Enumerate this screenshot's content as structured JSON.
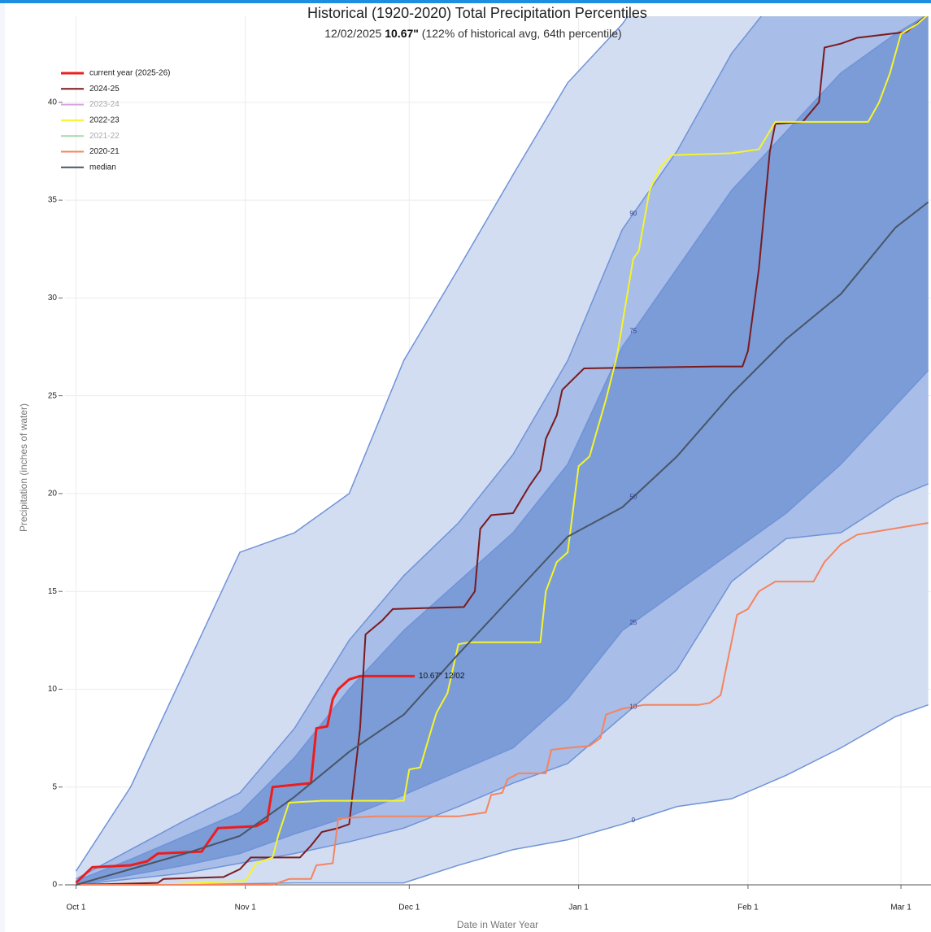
{
  "chart_data": {
    "type": "percentile-band-line",
    "title": "Historical (1920-2020) Total Precipitation Percentiles",
    "subtitle_date": "12/02/2025",
    "subtitle_value": "10.67\"",
    "subtitle_rest": "(122% of historical avg, 64th percentile)",
    "xlabel": "Date in Water Year",
    "ylabel": "Precipitation (inches of water)",
    "xlim": [
      -2,
      156.5
    ],
    "xticks": [
      {
        "value": 0,
        "label": "Oct 1"
      },
      {
        "value": 31,
        "label": "Nov 1"
      },
      {
        "value": 61,
        "label": "Dec 1"
      },
      {
        "value": 92,
        "label": "Jan 1"
      },
      {
        "value": 123,
        "label": "Feb 1"
      },
      {
        "value": 151,
        "label": "Mar 1"
      }
    ],
    "ylim": [
      0,
      44.4
    ],
    "yticks": [
      0,
      5,
      10,
      15,
      20,
      25,
      30,
      35,
      40
    ],
    "grid": true,
    "percentile_label_x": 102,
    "percentiles": {
      "x": [
        0,
        10,
        20,
        30,
        40,
        50,
        60,
        70,
        80,
        90,
        100,
        110,
        120,
        130,
        140,
        150,
        156
      ],
      "edge_color": "#6f93d8",
      "levels": [
        {
          "percentile": 0,
          "values": [
            0,
            0,
            0,
            0.05,
            0.1,
            0.1,
            0.1,
            1.0,
            1.8,
            2.3,
            3.1,
            4.0,
            4.4,
            5.6,
            7.0,
            8.6,
            9.2
          ]
        },
        {
          "percentile": 10,
          "values": [
            0,
            0.3,
            0.6,
            1.1,
            1.6,
            2.2,
            2.9,
            4.0,
            5.2,
            6.2,
            8.6,
            11.0,
            15.5,
            17.7,
            18.0,
            19.8,
            20.5
          ]
        },
        {
          "percentile": 25,
          "values": [
            0,
            0.5,
            1.0,
            1.6,
            2.6,
            3.5,
            4.6,
            5.8,
            7.0,
            9.5,
            13.0,
            15.0,
            17.0,
            19.0,
            21.5,
            24.5,
            26.3
          ]
        },
        {
          "percentile": 50,
          "values": [
            0,
            0.8,
            1.6,
            2.5,
            4.5,
            6.8,
            8.7,
            11.8,
            14.8,
            17.8,
            19.3,
            21.9,
            25.1,
            27.9,
            30.2,
            33.6,
            34.9
          ]
        },
        {
          "percentile": 75,
          "values": [
            0.2,
            1.3,
            2.5,
            3.7,
            6.5,
            10.0,
            13.0,
            15.5,
            18.0,
            21.5,
            27.5,
            31.5,
            35.5,
            38.5,
            41.5,
            43.5,
            44.5
          ]
        },
        {
          "percentile": 90,
          "values": [
            0.3,
            1.8,
            3.3,
            4.7,
            8.0,
            12.5,
            15.8,
            18.5,
            22.0,
            26.8,
            33.5,
            37.5,
            42.5,
            46,
            48,
            50,
            51
          ]
        },
        {
          "values": [
            0.7,
            5.0,
            11.0,
            17.0,
            18.0,
            20.0,
            26.8,
            31.5,
            36.3,
            41.0,
            44.0,
            48,
            52,
            55,
            58,
            61,
            63
          ]
        }
      ],
      "bands": [
        {
          "low": 0,
          "high": 6,
          "color": "#d3ddf1"
        },
        {
          "low": 1,
          "high": 5,
          "color": "#a8bde7"
        },
        {
          "low": 2,
          "high": 4,
          "color": "#7b9cd7"
        }
      ]
    },
    "series": [
      {
        "name": "current year (2025-26)",
        "color": "#ee1c1c",
        "width": 3,
        "x": [
          0,
          3,
          10,
          13,
          15,
          23,
          24,
          26,
          33,
          35,
          36,
          43,
          44,
          46,
          47,
          48,
          50,
          52,
          62
        ],
        "values": [
          0.1,
          0.9,
          1.0,
          1.2,
          1.6,
          1.7,
          2.1,
          2.9,
          3.0,
          3.3,
          5.0,
          5.2,
          8.0,
          8.1,
          9.5,
          10.0,
          10.5,
          10.67,
          10.67
        ]
      },
      {
        "name": "2024-25",
        "color": "#7a1a1e",
        "width": 2,
        "x": [
          0,
          15,
          16,
          27,
          30,
          32,
          41,
          43,
          45,
          48,
          50,
          52,
          53,
          56,
          58,
          71,
          73,
          74,
          76,
          80,
          83,
          85,
          86,
          88,
          89,
          93,
          117,
          122,
          123,
          125,
          127,
          128,
          133,
          136,
          137,
          140,
          143,
          152,
          156
        ],
        "values": [
          0,
          0.1,
          0.3,
          0.4,
          0.8,
          1.4,
          1.4,
          2.0,
          2.7,
          2.9,
          3.1,
          8.0,
          12.8,
          13.5,
          14.1,
          14.2,
          15.0,
          18.2,
          18.9,
          19.0,
          20.4,
          21.2,
          22.8,
          24.0,
          25.3,
          26.4,
          26.5,
          26.5,
          27.3,
          31.5,
          37.5,
          38.9,
          39.0,
          40.0,
          42.8,
          43.0,
          43.3,
          43.6,
          44.5
        ]
      },
      {
        "name": "2023-24",
        "color": "#c77fd1",
        "faded": true
      },
      {
        "name": "2022-23",
        "color": "#f5f52a",
        "width": 2,
        "x": [
          0,
          15,
          22,
          31,
          33,
          36,
          37,
          39,
          45,
          60,
          61,
          63,
          65,
          66,
          68,
          70,
          72,
          85,
          86,
          88,
          90,
          92,
          94,
          97,
          99,
          102,
          103,
          105,
          107,
          109,
          120,
          125,
          128,
          145,
          147,
          149,
          151,
          154,
          156
        ],
        "values": [
          0,
          0,
          0.1,
          0.2,
          1.1,
          1.4,
          2.5,
          4.2,
          4.3,
          4.3,
          5.9,
          6.0,
          7.9,
          8.8,
          9.8,
          12.3,
          12.4,
          12.4,
          15.0,
          16.5,
          17.0,
          21.4,
          21.9,
          24.8,
          27.0,
          32.0,
          32.4,
          35.5,
          36.7,
          37.3,
          37.4,
          37.6,
          39.0,
          39.0,
          40.0,
          41.5,
          43.5,
          44.0,
          44.5
        ]
      },
      {
        "name": "2021-22",
        "color": "#7fc98a",
        "faded": true
      },
      {
        "name": "2020-21",
        "color": "#f4845f",
        "width": 2,
        "x": [
          0,
          36,
          39,
          43,
          44,
          47,
          48,
          55,
          70,
          75,
          76,
          78,
          79,
          81,
          86,
          87,
          90,
          94,
          96,
          97,
          100,
          104,
          114,
          116,
          118,
          121,
          123,
          125,
          128,
          135,
          137,
          140,
          143,
          156
        ],
        "values": [
          0,
          0,
          0.3,
          0.3,
          1.0,
          1.1,
          3.4,
          3.5,
          3.5,
          3.7,
          4.6,
          4.7,
          5.4,
          5.7,
          5.7,
          6.9,
          7.0,
          7.1,
          7.5,
          8.7,
          9.0,
          9.2,
          9.2,
          9.3,
          9.7,
          13.8,
          14.1,
          15.0,
          15.5,
          15.5,
          16.5,
          17.4,
          17.9,
          18.5
        ]
      },
      {
        "name": "median",
        "color": "#4a5566",
        "width": 2,
        "percentile_level": 3
      }
    ],
    "annotation": "10.67\" 12/02",
    "annotation_series": 0
  }
}
